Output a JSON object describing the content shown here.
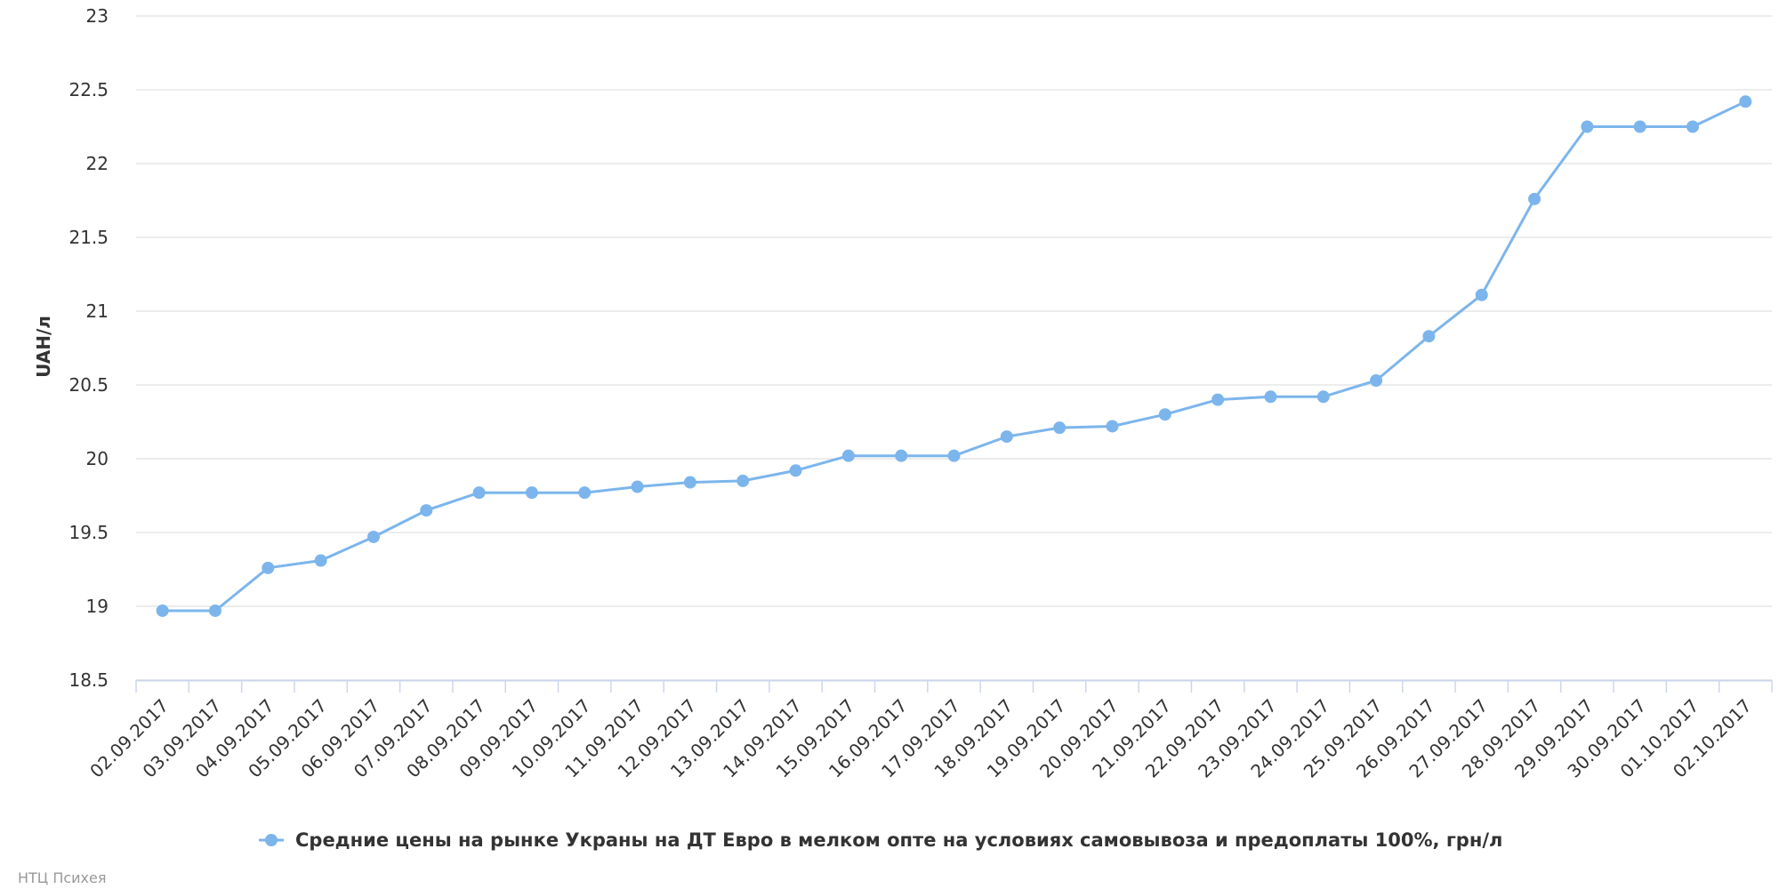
{
  "chart_data": {
    "type": "line",
    "title": "",
    "xlabel": "",
    "ylabel": "UAH/л",
    "ylim": [
      18.5,
      23
    ],
    "yticks": [
      "18.5",
      "19",
      "19.5",
      "20",
      "20.5",
      "21",
      "21.5",
      "22",
      "22.5",
      "23"
    ],
    "grid": true,
    "legend_position": "bottom",
    "categories": [
      "02.09.2017",
      "03.09.2017",
      "04.09.2017",
      "05.09.2017",
      "06.09.2017",
      "07.09.2017",
      "08.09.2017",
      "09.09.2017",
      "10.09.2017",
      "11.09.2017",
      "12.09.2017",
      "13.09.2017",
      "14.09.2017",
      "15.09.2017",
      "16.09.2017",
      "17.09.2017",
      "18.09.2017",
      "19.09.2017",
      "20.09.2017",
      "21.09.2017",
      "22.09.2017",
      "23.09.2017",
      "24.09.2017",
      "25.09.2017",
      "26.09.2017",
      "27.09.2017",
      "28.09.2017",
      "29.09.2017",
      "30.09.2017",
      "01.10.2017",
      "02.10.2017"
    ],
    "series": [
      {
        "name": "Средние цены на рынке Украны на ДТ Евро в мелком опте на условиях самовывоза и предоплаты 100%, грн/л",
        "color": "#7cb5ec",
        "values": [
          18.97,
          18.97,
          19.26,
          19.31,
          19.47,
          19.65,
          19.77,
          19.77,
          19.77,
          19.81,
          19.84,
          19.85,
          19.92,
          20.02,
          20.02,
          20.02,
          20.15,
          20.21,
          20.22,
          20.3,
          20.4,
          20.42,
          20.42,
          20.53,
          20.83,
          21.11,
          21.76,
          22.25,
          22.25,
          22.25,
          22.42
        ]
      }
    ]
  },
  "credit": "НТЦ Психея",
  "colors": {
    "gridline": "#e6e6e6",
    "axis": "#ccd6eb",
    "text": "#333333"
  }
}
